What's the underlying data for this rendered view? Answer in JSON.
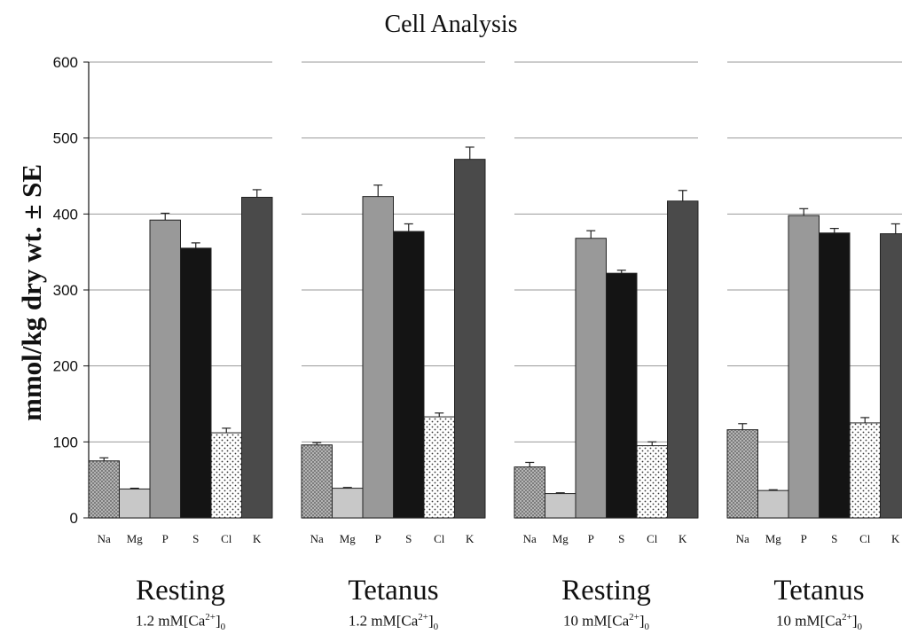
{
  "chart_data": {
    "type": "bar",
    "title": "Cell Analysis",
    "ylabel": "mmol/kg dry wt. ± SE",
    "ylim": [
      0,
      600
    ],
    "yticks": [
      0,
      100,
      200,
      300,
      400,
      500,
      600
    ],
    "grid": true,
    "categories": [
      "Na",
      "Mg",
      "P",
      "S",
      "Cl",
      "K"
    ],
    "panels": [
      {
        "label": "Resting",
        "condition_prefix": "1.2 mM[Ca",
        "values": [
          75,
          38,
          392,
          355,
          112,
          422
        ],
        "errors": [
          4,
          1,
          9,
          7,
          6,
          10
        ]
      },
      {
        "label": "Tetanus",
        "condition_prefix": "1.2 mM[Ca",
        "values": [
          96,
          39,
          423,
          377,
          133,
          472
        ],
        "errors": [
          3,
          1,
          15,
          10,
          5,
          16
        ]
      },
      {
        "label": "Resting",
        "condition_prefix": "10 mM[Ca",
        "values": [
          67,
          32,
          368,
          322,
          95,
          417
        ],
        "errors": [
          6,
          1,
          10,
          4,
          5,
          14
        ]
      },
      {
        "label": "Tetanus",
        "condition_prefix": "10 mM[Ca",
        "values": [
          116,
          36,
          398,
          375,
          125,
          374
        ],
        "errors": [
          8,
          1,
          9,
          6,
          7,
          13
        ]
      }
    ],
    "condition_sup": "2+",
    "condition_close": "]",
    "condition_sub": "0",
    "bar_colors": {
      "Na": "#a8a8a8",
      "Mg": "#c8c8c8",
      "P": "#999999",
      "S": "#141414",
      "Cl": "#ffffff",
      "K": "#4a4a4a"
    }
  }
}
